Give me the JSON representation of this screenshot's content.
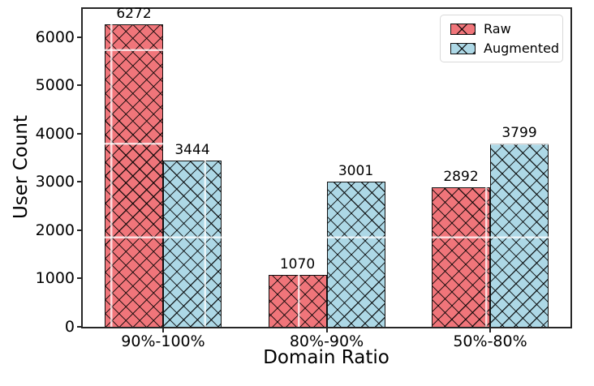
{
  "chart_data": {
    "type": "bar",
    "title": "",
    "xlabel": "Domain Ratio",
    "ylabel": "User Count",
    "categories": [
      "90%-100%",
      "80%-90%",
      "50%-80%"
    ],
    "series": [
      {
        "name": "Raw",
        "color": "#F0757A",
        "values": [
          6272,
          1070,
          2892
        ]
      },
      {
        "name": "Augmented",
        "color": "#ADD8E6",
        "values": [
          3444,
          3001,
          3799
        ]
      }
    ],
    "yticks": [
      0,
      1000,
      2000,
      3000,
      4000,
      5000,
      6000
    ],
    "ylim": [
      0,
      6587
    ],
    "bar_value_labels": true,
    "hatch": "xx",
    "grid": "white lines overlaid on bars",
    "legend_position": "upper right",
    "colors": {
      "bar_edge": "#111111",
      "spine": "#262626",
      "text": "#000000",
      "legend_border": "#d9d9d9",
      "background": "#ffffff"
    }
  }
}
